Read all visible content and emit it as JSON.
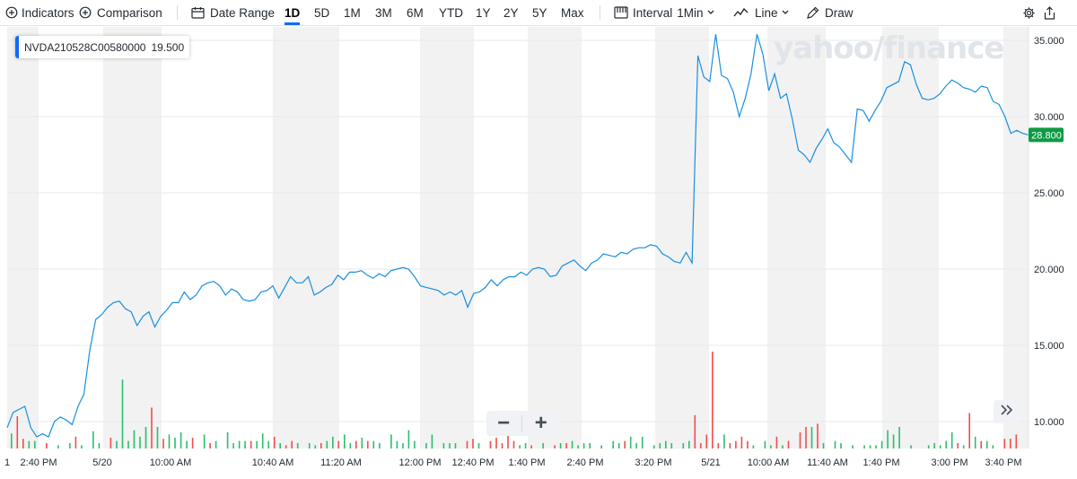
{
  "toolbar": {
    "indicators_label": "Indicators",
    "comparison_label": "Comparison",
    "date_range_label": "Date Range",
    "ranges": [
      "1D",
      "5D",
      "1M",
      "3M",
      "6M",
      "YTD",
      "1Y",
      "2Y",
      "5Y",
      "Max"
    ],
    "active_range": "1D",
    "interval_label": "Interval",
    "interval_value": "1Min",
    "line_label": "Line",
    "draw_label": "Draw"
  },
  "legend": {
    "symbol": "NVDA210528C00580000",
    "value": "19.500"
  },
  "watermark": "yahoo/finance",
  "colors": {
    "line": "#188fe0",
    "up_volume": "#2dbd6e",
    "down_volume": "#f24d4d",
    "last_price_bg": "#0c9b44",
    "accent": "#0f69ff",
    "shaded_band": "#f2f2f2"
  },
  "icons": [
    "plus-circle-icon",
    "calendar-icon",
    "interval-bars-icon",
    "line-chart-icon",
    "pencil-icon",
    "gear-icon",
    "share-icon",
    "zoom-out-icon",
    "zoom-in-icon",
    "double-chevron-right-icon"
  ],
  "zoom": {
    "minus": "−",
    "plus": "+"
  },
  "chart_data": {
    "type": "line",
    "title": "",
    "xlabel": "",
    "ylabel": "",
    "ylim": [
      8.5,
      36.5
    ],
    "yticks": [
      "35.000",
      "30.000",
      "25.000",
      "20.000",
      "15.000",
      "10.000"
    ],
    "last_price": "28.800",
    "grid": true,
    "x_tick_labels": [
      "1",
      "2:40 PM",
      "5/20",
      "10:00 AM",
      "10:40 AM",
      "11:20 AM",
      "12:00 PM",
      "12:40 PM",
      "1:40 PM",
      "2:40 PM",
      "3:20 PM",
      "5/21",
      "10:00 AM",
      "11:40 AM",
      "1:40 PM",
      "3:00 PM",
      "3:40 PM"
    ],
    "series": [
      {
        "values": [
          9.6,
          10.6,
          10.8,
          11.0,
          9.6,
          9.0,
          9.2,
          9.0,
          10.0,
          10.3,
          10.1,
          9.8,
          11.0,
          11.8,
          14.7,
          16.7,
          17.0,
          17.5,
          17.8,
          17.9,
          17.4,
          17.2,
          16.3,
          16.9,
          17.2,
          16.2,
          16.9,
          17.3,
          17.8,
          17.8,
          18.5,
          18.0,
          18.3,
          18.9,
          19.1,
          19.2,
          18.9,
          18.3,
          18.7,
          18.5,
          18.0,
          17.9,
          18.0,
          18.5,
          18.6,
          18.9,
          18.1,
          18.8,
          19.5,
          19.1,
          19.1,
          19.5,
          18.3,
          18.5,
          18.8,
          19.0,
          19.6,
          19.3,
          19.8,
          19.8,
          19.9,
          19.6,
          19.4,
          19.7,
          19.5,
          19.9,
          20.0,
          20.1,
          20.0,
          19.5,
          18.9,
          18.8,
          18.7,
          18.6,
          18.3,
          18.5,
          18.3,
          18.6,
          17.5,
          18.4,
          18.5,
          18.8,
          19.3,
          18.9,
          19.3,
          19.5,
          19.5,
          19.8,
          19.6,
          20.0,
          20.1,
          20.0,
          19.5,
          19.6,
          20.2,
          20.4,
          20.6,
          20.2,
          19.9,
          20.4,
          20.6,
          21.0,
          20.9,
          20.8,
          21.1,
          21.0,
          21.3,
          21.4,
          21.4,
          21.6,
          21.5,
          21.0,
          20.8,
          20.5,
          20.4,
          21.1,
          20.4,
          34.0,
          32.6,
          32.3,
          35.4,
          32.7,
          32.5,
          31.6,
          30.0,
          31.2,
          32.8,
          35.4,
          34.1,
          31.7,
          32.8,
          31.2,
          31.5,
          29.8,
          27.8,
          27.5,
          27.0,
          27.9,
          28.5,
          29.2,
          28.3,
          28.0,
          27.5,
          27.0,
          30.5,
          30.4,
          29.7,
          30.4,
          31.0,
          31.9,
          32.1,
          32.3,
          33.6,
          33.4,
          32.1,
          31.2,
          31.1,
          31.2,
          31.5,
          32.0,
          32.4,
          32.2,
          31.9,
          31.8,
          31.6,
          32.0,
          31.9,
          31.0,
          30.8,
          30.0,
          28.9,
          29.1,
          28.9,
          28.8
        ]
      }
    ],
    "volume": [
      {
        "v": 0.28,
        "c": "up"
      },
      {
        "v": 0.6,
        "c": "down"
      },
      {
        "v": 0.18,
        "c": "down"
      },
      {
        "v": 0.14,
        "c": "up"
      },
      {
        "v": 0.14,
        "c": "up"
      },
      {
        "v": 0.0,
        "c": "up"
      },
      {
        "v": 0.1,
        "c": "down"
      },
      {
        "v": 0.0,
        "c": "up"
      },
      {
        "v": 0.06,
        "c": "up"
      },
      {
        "v": 0.0,
        "c": "up"
      },
      {
        "v": 0.1,
        "c": "up"
      },
      {
        "v": 0.22,
        "c": "down"
      },
      {
        "v": 0.06,
        "c": "up"
      },
      {
        "v": 0.0,
        "c": "up"
      },
      {
        "v": 0.32,
        "c": "up"
      },
      {
        "v": 0.1,
        "c": "up"
      },
      {
        "v": 0.0,
        "c": "up"
      },
      {
        "v": 0.2,
        "c": "down"
      },
      {
        "v": 0.14,
        "c": "up"
      },
      {
        "v": 1.28,
        "c": "up"
      },
      {
        "v": 0.14,
        "c": "up"
      },
      {
        "v": 0.34,
        "c": "up"
      },
      {
        "v": 0.22,
        "c": "up"
      },
      {
        "v": 0.4,
        "c": "up"
      },
      {
        "v": 0.76,
        "c": "down"
      },
      {
        "v": 0.4,
        "c": "up"
      },
      {
        "v": 0.18,
        "c": "down"
      },
      {
        "v": 0.26,
        "c": "up"
      },
      {
        "v": 0.2,
        "c": "up"
      },
      {
        "v": 0.3,
        "c": "up"
      },
      {
        "v": 0.14,
        "c": "up"
      },
      {
        "v": 0.2,
        "c": "down"
      },
      {
        "v": 0.0,
        "c": "up"
      },
      {
        "v": 0.26,
        "c": "up"
      },
      {
        "v": 0.1,
        "c": "down"
      },
      {
        "v": 0.14,
        "c": "up"
      },
      {
        "v": 0.0,
        "c": "up"
      },
      {
        "v": 0.3,
        "c": "up"
      },
      {
        "v": 0.1,
        "c": "up"
      },
      {
        "v": 0.14,
        "c": "up"
      },
      {
        "v": 0.14,
        "c": "up"
      },
      {
        "v": 0.14,
        "c": "down"
      },
      {
        "v": 0.14,
        "c": "up"
      },
      {
        "v": 0.28,
        "c": "up"
      },
      {
        "v": 0.14,
        "c": "up"
      },
      {
        "v": 0.22,
        "c": "down"
      },
      {
        "v": 0.1,
        "c": "up"
      },
      {
        "v": 0.06,
        "c": "down"
      },
      {
        "v": 0.14,
        "c": "down"
      },
      {
        "v": 0.1,
        "c": "up"
      },
      {
        "v": 0.0,
        "c": "up"
      },
      {
        "v": 0.1,
        "c": "up"
      },
      {
        "v": 0.06,
        "c": "up"
      },
      {
        "v": 0.1,
        "c": "down"
      },
      {
        "v": 0.14,
        "c": "up"
      },
      {
        "v": 0.22,
        "c": "up"
      },
      {
        "v": 0.14,
        "c": "down"
      },
      {
        "v": 0.26,
        "c": "up"
      },
      {
        "v": 0.1,
        "c": "up"
      },
      {
        "v": 0.14,
        "c": "down"
      },
      {
        "v": 0.2,
        "c": "up"
      },
      {
        "v": 0.14,
        "c": "down"
      },
      {
        "v": 0.14,
        "c": "up"
      },
      {
        "v": 0.1,
        "c": "up"
      },
      {
        "v": 0.0,
        "c": "up"
      },
      {
        "v": 0.26,
        "c": "up"
      },
      {
        "v": 0.14,
        "c": "up"
      },
      {
        "v": 0.1,
        "c": "up"
      },
      {
        "v": 0.34,
        "c": "up"
      },
      {
        "v": 0.14,
        "c": "up"
      },
      {
        "v": 0.0,
        "c": "up"
      },
      {
        "v": 0.1,
        "c": "up"
      },
      {
        "v": 0.26,
        "c": "up"
      },
      {
        "v": 0.0,
        "c": "up"
      },
      {
        "v": 0.1,
        "c": "up"
      },
      {
        "v": 0.1,
        "c": "up"
      },
      {
        "v": 0.1,
        "c": "up"
      },
      {
        "v": 0.0,
        "c": "up"
      },
      {
        "v": 0.14,
        "c": "down"
      },
      {
        "v": 0.18,
        "c": "down"
      },
      {
        "v": 0.1,
        "c": "up"
      },
      {
        "v": 0.0,
        "c": "up"
      },
      {
        "v": 0.14,
        "c": "down"
      },
      {
        "v": 0.2,
        "c": "down"
      },
      {
        "v": 0.1,
        "c": "down"
      },
      {
        "v": 0.3,
        "c": "down"
      },
      {
        "v": 0.14,
        "c": "down"
      },
      {
        "v": 0.06,
        "c": "up"
      },
      {
        "v": 0.1,
        "c": "up"
      },
      {
        "v": 0.06,
        "c": "down"
      },
      {
        "v": 0.0,
        "c": "up"
      },
      {
        "v": 0.1,
        "c": "up"
      },
      {
        "v": 0.0,
        "c": "up"
      },
      {
        "v": 0.06,
        "c": "down"
      },
      {
        "v": 0.1,
        "c": "up"
      },
      {
        "v": 0.1,
        "c": "down"
      },
      {
        "v": 0.14,
        "c": "up"
      },
      {
        "v": 0.06,
        "c": "up"
      },
      {
        "v": 0.1,
        "c": "up"
      },
      {
        "v": 0.1,
        "c": "up"
      },
      {
        "v": 0.0,
        "c": "up"
      },
      {
        "v": 0.06,
        "c": "up"
      },
      {
        "v": 0.0,
        "c": "up"
      },
      {
        "v": 0.14,
        "c": "up"
      },
      {
        "v": 0.1,
        "c": "up"
      },
      {
        "v": 0.14,
        "c": "down"
      },
      {
        "v": 0.22,
        "c": "up"
      },
      {
        "v": 0.1,
        "c": "up"
      },
      {
        "v": 0.22,
        "c": "up"
      },
      {
        "v": 0.0,
        "c": "up"
      },
      {
        "v": 0.06,
        "c": "up"
      },
      {
        "v": 0.1,
        "c": "up"
      },
      {
        "v": 0.14,
        "c": "up"
      },
      {
        "v": 0.1,
        "c": "up"
      },
      {
        "v": 0.0,
        "c": "up"
      },
      {
        "v": 0.1,
        "c": "up"
      },
      {
        "v": 0.14,
        "c": "up"
      },
      {
        "v": 0.62,
        "c": "down"
      },
      {
        "v": 0.1,
        "c": "down"
      },
      {
        "v": 0.26,
        "c": "down"
      },
      {
        "v": 1.8,
        "c": "down"
      },
      {
        "v": 0.1,
        "c": "down"
      },
      {
        "v": 0.26,
        "c": "up"
      },
      {
        "v": 0.1,
        "c": "down"
      },
      {
        "v": 0.14,
        "c": "down"
      },
      {
        "v": 0.22,
        "c": "down"
      },
      {
        "v": 0.14,
        "c": "down"
      },
      {
        "v": 0.06,
        "c": "up"
      },
      {
        "v": 0.0,
        "c": "up"
      },
      {
        "v": 0.14,
        "c": "up"
      },
      {
        "v": 0.06,
        "c": "up"
      },
      {
        "v": 0.22,
        "c": "down"
      },
      {
        "v": 0.06,
        "c": "up"
      },
      {
        "v": 0.14,
        "c": "down"
      },
      {
        "v": 0.0,
        "c": "up"
      },
      {
        "v": 0.3,
        "c": "down"
      },
      {
        "v": 0.4,
        "c": "down"
      },
      {
        "v": 0.4,
        "c": "up"
      },
      {
        "v": 0.46,
        "c": "down"
      },
      {
        "v": 0.1,
        "c": "up"
      },
      {
        "v": 0.0,
        "c": "up"
      },
      {
        "v": 0.14,
        "c": "up"
      },
      {
        "v": 0.1,
        "c": "up"
      },
      {
        "v": 0.0,
        "c": "up"
      },
      {
        "v": 0.06,
        "c": "up"
      },
      {
        "v": 0.0,
        "c": "up"
      },
      {
        "v": 0.06,
        "c": "up"
      },
      {
        "v": 0.06,
        "c": "up"
      },
      {
        "v": 0.06,
        "c": "up"
      },
      {
        "v": 0.14,
        "c": "up"
      },
      {
        "v": 0.34,
        "c": "up"
      },
      {
        "v": 0.26,
        "c": "up"
      },
      {
        "v": 0.4,
        "c": "up"
      },
      {
        "v": 0.0,
        "c": "up"
      },
      {
        "v": 0.06,
        "c": "up"
      },
      {
        "v": 0.0,
        "c": "up"
      },
      {
        "v": 0.0,
        "c": "up"
      },
      {
        "v": 0.06,
        "c": "up"
      },
      {
        "v": 0.1,
        "c": "up"
      },
      {
        "v": 0.06,
        "c": "up"
      },
      {
        "v": 0.14,
        "c": "up"
      },
      {
        "v": 0.3,
        "c": "up"
      },
      {
        "v": 0.1,
        "c": "down"
      },
      {
        "v": 0.06,
        "c": "up"
      },
      {
        "v": 0.66,
        "c": "down"
      },
      {
        "v": 0.22,
        "c": "up"
      },
      {
        "v": 0.14,
        "c": "down"
      },
      {
        "v": 0.14,
        "c": "up"
      },
      {
        "v": 0.06,
        "c": "up"
      },
      {
        "v": 0.0,
        "c": "up"
      },
      {
        "v": 0.18,
        "c": "down"
      },
      {
        "v": 0.18,
        "c": "down"
      },
      {
        "v": 0.26,
        "c": "down"
      },
      {
        "v": 0.0,
        "c": "up"
      }
    ]
  }
}
